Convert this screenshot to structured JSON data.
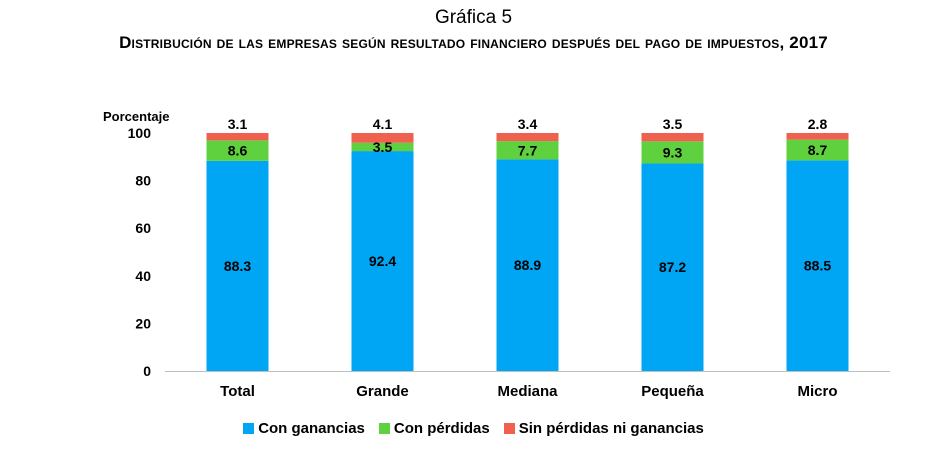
{
  "header": {
    "chart_label": "Gráfica 5",
    "title": "Distribución de las empresas según resultado financiero después del pago de impuestos, 2017"
  },
  "colors": {
    "con_ganancias": "#00a6f3",
    "con_perdidas": "#5fd13e",
    "sin_perdidas": "#f0604e",
    "axis": "#bfbfbf"
  },
  "chart_data": {
    "type": "bar",
    "stacked": true,
    "title": "Distribución de las empresas según resultado financiero después del pago de impuestos, 2017",
    "ylabel": "Porcentaje",
    "xlabel": "",
    "ylim": [
      0,
      100
    ],
    "yticks": [
      0,
      20,
      40,
      60,
      80,
      100
    ],
    "grid": false,
    "legend_position": "bottom",
    "categories": [
      "Total",
      "Grande",
      "Mediana",
      "Pequeña",
      "Micro"
    ],
    "series": [
      {
        "name": "Con ganancias",
        "color": "#00a6f3",
        "values": [
          88.3,
          92.4,
          88.9,
          87.2,
          88.5
        ]
      },
      {
        "name": "Con pérdidas",
        "color": "#5fd13e",
        "values": [
          8.6,
          3.5,
          7.7,
          9.3,
          8.7
        ]
      },
      {
        "name": "Sin pérdidas ni ganancias",
        "color": "#f0604e",
        "values": [
          3.1,
          4.1,
          3.4,
          3.5,
          2.8
        ]
      }
    ]
  }
}
